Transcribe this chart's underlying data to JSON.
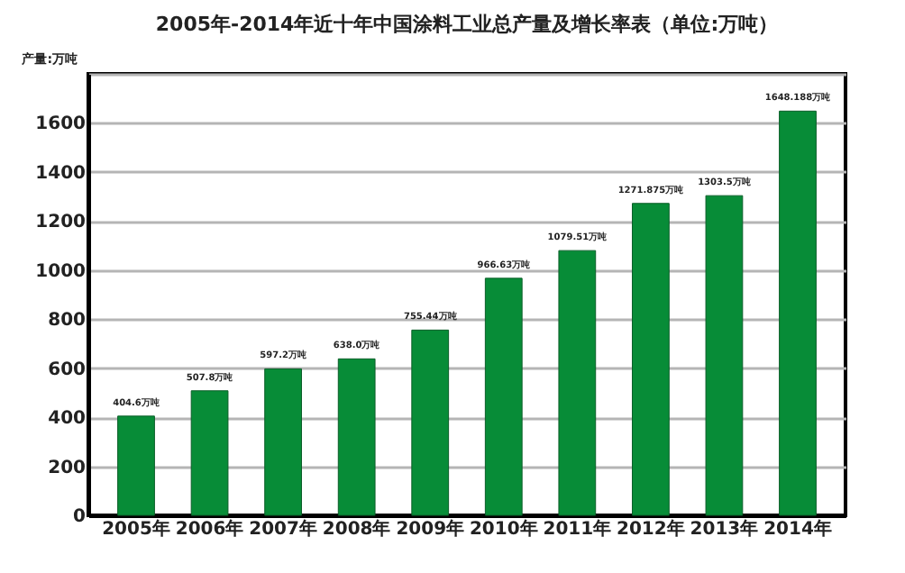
{
  "chart_data": {
    "type": "bar",
    "title": "2005年-2014年近十年中国涂料工业总产量及增长率表（单位:万吨）",
    "ylabel": "产量:万吨",
    "categories": [
      "2005年",
      "2006年",
      "2007年",
      "2008年",
      "2009年",
      "2010年",
      "2011年",
      "2012年",
      "2013年",
      "2014年"
    ],
    "values": [
      404.6,
      507.8,
      597.2,
      638.0,
      755.44,
      966.63,
      1079.51,
      1271.875,
      1303.5,
      1648.188
    ],
    "value_labels": [
      "404.6万吨",
      "507.8万吨",
      "597.2万吨",
      "638.0万吨",
      "755.44万吨",
      "966.63万吨",
      "1079.51万吨",
      "1271.875万吨",
      "1303.5万吨",
      "1648.188万吨"
    ],
    "color": "#078c37",
    "ylim": [
      0,
      1800
    ],
    "yticks": [
      0,
      200,
      400,
      600,
      800,
      1000,
      1200,
      1400,
      1600,
      {
        "value": 1800,
        "label": null
      }
    ],
    "grid": "y"
  }
}
